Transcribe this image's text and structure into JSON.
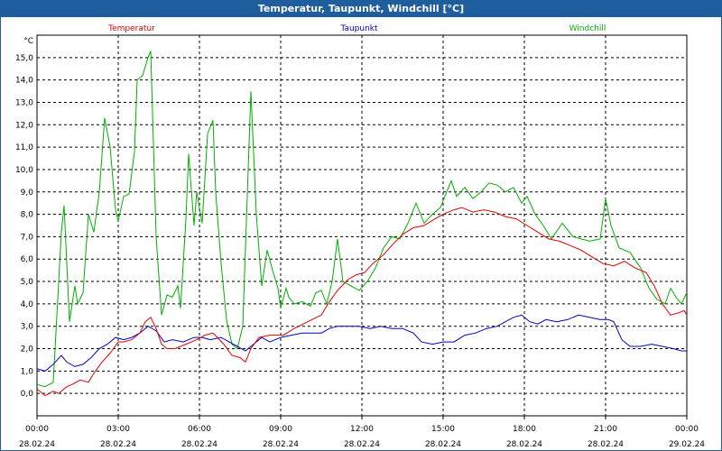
{
  "window": {
    "title": "Temperatur, Taupunkt, Windchill [°C]"
  },
  "chart_data": {
    "type": "line",
    "title": "Temperatur, Taupunkt, Windchill [°C]",
    "ylabel": "°C",
    "ylim": [
      -1.0,
      16.0
    ],
    "xlim": [
      0,
      24
    ],
    "grid": true,
    "legend": "top",
    "y_ticks": [
      "0,0",
      "1,0",
      "2,0",
      "3,0",
      "4,0",
      "5,0",
      "6,0",
      "7,0",
      "8,0",
      "9,0",
      "10,0",
      "11,0",
      "12,0",
      "13,0",
      "14,0",
      "15,0"
    ],
    "x_ticks": [
      {
        "time": "00:00",
        "date": "28.02.24"
      },
      {
        "time": "03:00",
        "date": "28.02.24"
      },
      {
        "time": "06:00",
        "date": "28.02.24"
      },
      {
        "time": "09:00",
        "date": "28.02.24"
      },
      {
        "time": "12:00",
        "date": "28.02.24"
      },
      {
        "time": "15:00",
        "date": "28.02.24"
      },
      {
        "time": "18:00",
        "date": "28.02.24"
      },
      {
        "time": "21:00",
        "date": "28.02.24"
      },
      {
        "time": "00:00",
        "date": "29.02.24"
      }
    ],
    "series": [
      {
        "name": "Temperatur",
        "color": "#e00000",
        "points": [
          [
            0,
            0.2
          ],
          [
            0.3,
            -0.1
          ],
          [
            0.6,
            0.1
          ],
          [
            0.8,
            0.0
          ],
          [
            1.1,
            0.3
          ],
          [
            1.3,
            0.4
          ],
          [
            1.6,
            0.6
          ],
          [
            1.9,
            0.5
          ],
          [
            2.1,
            0.9
          ],
          [
            2.4,
            1.4
          ],
          [
            2.7,
            1.8
          ],
          [
            3.0,
            2.3
          ],
          [
            3.2,
            2.3
          ],
          [
            3.5,
            2.4
          ],
          [
            3.8,
            2.7
          ],
          [
            4.0,
            3.2
          ],
          [
            4.2,
            3.4
          ],
          [
            4.4,
            2.9
          ],
          [
            4.6,
            2.2
          ],
          [
            4.8,
            2.0
          ],
          [
            5.1,
            2.0
          ],
          [
            5.5,
            2.2
          ],
          [
            5.9,
            2.4
          ],
          [
            6.2,
            2.6
          ],
          [
            6.5,
            2.7
          ],
          [
            6.9,
            2.2
          ],
          [
            7.2,
            1.7
          ],
          [
            7.5,
            1.6
          ],
          [
            7.7,
            1.4
          ],
          [
            7.9,
            2.0
          ],
          [
            8.2,
            2.5
          ],
          [
            8.6,
            2.6
          ],
          [
            9.1,
            2.6
          ],
          [
            9.5,
            2.9
          ],
          [
            10.0,
            3.2
          ],
          [
            10.5,
            3.5
          ],
          [
            10.8,
            4.1
          ],
          [
            11.1,
            4.6
          ],
          [
            11.5,
            5.1
          ],
          [
            11.8,
            5.3
          ],
          [
            12.1,
            5.4
          ],
          [
            12.4,
            5.8
          ],
          [
            12.8,
            6.2
          ],
          [
            13.1,
            6.6
          ],
          [
            13.5,
            7.1
          ],
          [
            13.9,
            7.4
          ],
          [
            14.3,
            7.5
          ],
          [
            14.7,
            7.8
          ],
          [
            15.0,
            8.0
          ],
          [
            15.4,
            8.2
          ],
          [
            15.7,
            8.3
          ],
          [
            16.1,
            8.1
          ],
          [
            16.5,
            8.2
          ],
          [
            16.9,
            8.1
          ],
          [
            17.3,
            7.9
          ],
          [
            17.7,
            7.8
          ],
          [
            18.1,
            7.5
          ],
          [
            18.5,
            7.2
          ],
          [
            18.9,
            6.9
          ],
          [
            19.3,
            6.8
          ],
          [
            19.7,
            6.6
          ],
          [
            20.1,
            6.4
          ],
          [
            20.5,
            6.1
          ],
          [
            20.9,
            5.8
          ],
          [
            21.3,
            5.7
          ],
          [
            21.7,
            5.9
          ],
          [
            22.1,
            5.6
          ],
          [
            22.5,
            5.4
          ],
          [
            22.8,
            4.8
          ],
          [
            23.1,
            4.0
          ],
          [
            23.4,
            3.5
          ],
          [
            23.7,
            3.6
          ],
          [
            23.9,
            3.7
          ],
          [
            24.0,
            3.5
          ]
        ]
      },
      {
        "name": "Taupunkt",
        "color": "#0000c0",
        "points": [
          [
            0,
            1.1
          ],
          [
            0.3,
            1.0
          ],
          [
            0.6,
            1.3
          ],
          [
            0.9,
            1.7
          ],
          [
            1.1,
            1.4
          ],
          [
            1.4,
            1.2
          ],
          [
            1.7,
            1.3
          ],
          [
            2.0,
            1.6
          ],
          [
            2.3,
            2.0
          ],
          [
            2.6,
            2.2
          ],
          [
            2.9,
            2.5
          ],
          [
            3.2,
            2.4
          ],
          [
            3.5,
            2.5
          ],
          [
            3.8,
            2.7
          ],
          [
            4.1,
            3.0
          ],
          [
            4.4,
            2.8
          ],
          [
            4.7,
            2.3
          ],
          [
            5.0,
            2.4
          ],
          [
            5.4,
            2.3
          ],
          [
            5.8,
            2.5
          ],
          [
            6.1,
            2.5
          ],
          [
            6.4,
            2.4
          ],
          [
            6.8,
            2.5
          ],
          [
            7.1,
            2.3
          ],
          [
            7.4,
            2.1
          ],
          [
            7.7,
            1.9
          ],
          [
            8.0,
            2.2
          ],
          [
            8.3,
            2.5
          ],
          [
            8.6,
            2.3
          ],
          [
            9.0,
            2.5
          ],
          [
            9.4,
            2.6
          ],
          [
            9.8,
            2.7
          ],
          [
            10.2,
            2.7
          ],
          [
            10.5,
            2.7
          ],
          [
            10.8,
            2.9
          ],
          [
            11.1,
            3.0
          ],
          [
            11.5,
            3.0
          ],
          [
            11.9,
            3.0
          ],
          [
            12.3,
            2.9
          ],
          [
            12.7,
            3.0
          ],
          [
            13.1,
            2.9
          ],
          [
            13.5,
            2.9
          ],
          [
            13.9,
            2.7
          ],
          [
            14.2,
            2.3
          ],
          [
            14.6,
            2.2
          ],
          [
            15.0,
            2.3
          ],
          [
            15.4,
            2.3
          ],
          [
            15.8,
            2.6
          ],
          [
            16.2,
            2.7
          ],
          [
            16.6,
            2.9
          ],
          [
            17.0,
            3.0
          ],
          [
            17.3,
            3.2
          ],
          [
            17.6,
            3.4
          ],
          [
            17.9,
            3.5
          ],
          [
            18.2,
            3.2
          ],
          [
            18.5,
            3.1
          ],
          [
            18.8,
            3.3
          ],
          [
            19.2,
            3.2
          ],
          [
            19.6,
            3.3
          ],
          [
            20.0,
            3.5
          ],
          [
            20.4,
            3.4
          ],
          [
            20.8,
            3.3
          ],
          [
            21.1,
            3.3
          ],
          [
            21.3,
            3.2
          ],
          [
            21.6,
            2.4
          ],
          [
            21.9,
            2.1
          ],
          [
            22.3,
            2.1
          ],
          [
            22.7,
            2.2
          ],
          [
            23.1,
            2.1
          ],
          [
            23.5,
            2.0
          ],
          [
            23.8,
            1.9
          ],
          [
            24.0,
            1.9
          ]
        ]
      },
      {
        "name": "Windchill",
        "color": "#00b000",
        "points": [
          [
            0,
            0.4
          ],
          [
            0.3,
            0.3
          ],
          [
            0.6,
            0.5
          ],
          [
            0.9,
            7.2
          ],
          [
            1.0,
            8.4
          ],
          [
            1.2,
            3.2
          ],
          [
            1.4,
            4.8
          ],
          [
            1.5,
            4.0
          ],
          [
            1.7,
            4.5
          ],
          [
            1.9,
            8.0
          ],
          [
            2.1,
            7.2
          ],
          [
            2.3,
            9.0
          ],
          [
            2.5,
            12.3
          ],
          [
            2.7,
            11.0
          ],
          [
            2.9,
            8.2
          ],
          [
            3.0,
            7.7
          ],
          [
            3.2,
            8.8
          ],
          [
            3.4,
            8.9
          ],
          [
            3.6,
            10.8
          ],
          [
            3.7,
            14.0
          ],
          [
            3.9,
            14.2
          ],
          [
            4.1,
            15.0
          ],
          [
            4.2,
            15.3
          ],
          [
            4.4,
            7.0
          ],
          [
            4.6,
            3.5
          ],
          [
            4.8,
            4.4
          ],
          [
            5.0,
            4.3
          ],
          [
            5.2,
            4.8
          ],
          [
            5.3,
            3.8
          ],
          [
            5.5,
            7.8
          ],
          [
            5.6,
            10.7
          ],
          [
            5.8,
            7.5
          ],
          [
            5.9,
            9.0
          ],
          [
            6.1,
            7.6
          ],
          [
            6.3,
            11.6
          ],
          [
            6.5,
            12.2
          ],
          [
            6.6,
            9.0
          ],
          [
            6.8,
            5.8
          ],
          [
            7.0,
            3.3
          ],
          [
            7.2,
            2.2
          ],
          [
            7.4,
            2.0
          ],
          [
            7.6,
            3.0
          ],
          [
            7.8,
            10.0
          ],
          [
            7.9,
            13.5
          ],
          [
            8.1,
            8.0
          ],
          [
            8.3,
            4.8
          ],
          [
            8.5,
            6.4
          ],
          [
            8.7,
            5.5
          ],
          [
            8.9,
            4.7
          ],
          [
            9.0,
            3.8
          ],
          [
            9.2,
            4.7
          ],
          [
            9.3,
            4.3
          ],
          [
            9.5,
            4.0
          ],
          [
            9.8,
            4.1
          ],
          [
            10.1,
            3.9
          ],
          [
            10.3,
            4.5
          ],
          [
            10.5,
            4.6
          ],
          [
            10.7,
            4.0
          ],
          [
            10.9,
            5.0
          ],
          [
            11.1,
            6.9
          ],
          [
            11.3,
            5.0
          ],
          [
            11.6,
            4.8
          ],
          [
            11.9,
            4.6
          ],
          [
            12.2,
            5.0
          ],
          [
            12.5,
            5.6
          ],
          [
            12.8,
            6.5
          ],
          [
            13.1,
            7.0
          ],
          [
            13.4,
            6.9
          ],
          [
            13.7,
            7.6
          ],
          [
            14.0,
            8.5
          ],
          [
            14.3,
            7.6
          ],
          [
            14.6,
            8.0
          ],
          [
            14.9,
            8.3
          ],
          [
            15.1,
            8.9
          ],
          [
            15.3,
            9.5
          ],
          [
            15.5,
            8.8
          ],
          [
            15.8,
            9.2
          ],
          [
            16.1,
            8.7
          ],
          [
            16.4,
            9.0
          ],
          [
            16.7,
            9.4
          ],
          [
            17.0,
            9.3
          ],
          [
            17.3,
            9.0
          ],
          [
            17.6,
            9.2
          ],
          [
            17.9,
            8.5
          ],
          [
            18.1,
            8.8
          ],
          [
            18.4,
            8.0
          ],
          [
            18.7,
            7.5
          ],
          [
            19.0,
            6.9
          ],
          [
            19.4,
            7.6
          ],
          [
            19.8,
            7.0
          ],
          [
            20.1,
            6.9
          ],
          [
            20.4,
            6.8
          ],
          [
            20.8,
            6.9
          ],
          [
            21.0,
            8.7
          ],
          [
            21.2,
            7.5
          ],
          [
            21.5,
            6.5
          ],
          [
            21.9,
            6.3
          ],
          [
            22.3,
            5.6
          ],
          [
            22.6,
            4.7
          ],
          [
            22.9,
            4.2
          ],
          [
            23.2,
            4.0
          ],
          [
            23.4,
            4.7
          ],
          [
            23.6,
            4.3
          ],
          [
            23.8,
            4.0
          ],
          [
            24.0,
            4.5
          ]
        ]
      }
    ]
  }
}
